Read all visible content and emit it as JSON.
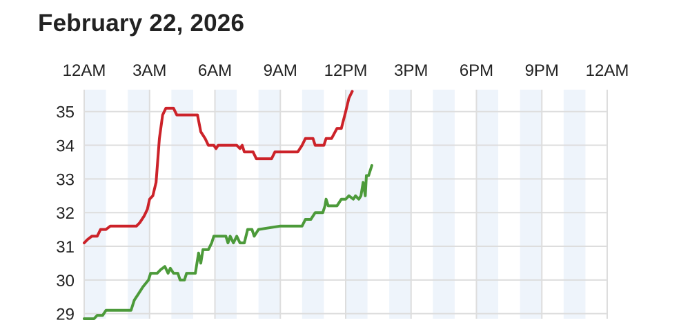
{
  "header": {
    "title": "February 22, 2026"
  },
  "chart_data": {
    "type": "line",
    "title": "February 22, 2026",
    "xlabel": "",
    "ylabel": "",
    "x_tick_labels": [
      "12AM",
      "3AM",
      "6AM",
      "9AM",
      "12PM",
      "3PM",
      "6PM",
      "9PM",
      "12AM"
    ],
    "x_axis_position": "top",
    "x_range_hours": [
      0,
      24
    ],
    "y_ticks": [
      29,
      30,
      31,
      32,
      33,
      34,
      35
    ],
    "ylim": [
      28.85,
      35.65
    ],
    "grid": true,
    "alternating_hour_bands": true,
    "band_color": "#eef4fb",
    "grid_color": "#dddddd",
    "series": [
      {
        "color": "#cc2229",
        "points": [
          [
            0.0,
            31.1
          ],
          [
            0.15,
            31.2
          ],
          [
            0.35,
            31.3
          ],
          [
            0.6,
            31.3
          ],
          [
            0.75,
            31.5
          ],
          [
            1.0,
            31.5
          ],
          [
            1.2,
            31.6
          ],
          [
            2.0,
            31.6
          ],
          [
            2.4,
            31.6
          ],
          [
            2.55,
            31.7
          ],
          [
            2.75,
            31.9
          ],
          [
            2.9,
            32.1
          ],
          [
            3.0,
            32.4
          ],
          [
            3.15,
            32.5
          ],
          [
            3.3,
            32.9
          ],
          [
            3.45,
            34.2
          ],
          [
            3.6,
            34.9
          ],
          [
            3.75,
            35.1
          ],
          [
            4.1,
            35.1
          ],
          [
            4.25,
            34.9
          ],
          [
            5.2,
            34.9
          ],
          [
            5.35,
            34.4
          ],
          [
            5.55,
            34.2
          ],
          [
            5.7,
            34.0
          ],
          [
            5.95,
            34.0
          ],
          [
            6.05,
            33.9
          ],
          [
            6.15,
            34.0
          ],
          [
            6.5,
            34.0
          ],
          [
            7.0,
            34.0
          ],
          [
            7.15,
            33.9
          ],
          [
            7.25,
            34.0
          ],
          [
            7.35,
            33.8
          ],
          [
            7.75,
            33.8
          ],
          [
            7.9,
            33.6
          ],
          [
            8.6,
            33.6
          ],
          [
            8.75,
            33.8
          ],
          [
            9.2,
            33.8
          ],
          [
            9.8,
            33.8
          ],
          [
            10.0,
            34.0
          ],
          [
            10.15,
            34.2
          ],
          [
            10.5,
            34.2
          ],
          [
            10.6,
            34.0
          ],
          [
            11.0,
            34.0
          ],
          [
            11.1,
            34.2
          ],
          [
            11.35,
            34.2
          ],
          [
            11.6,
            34.5
          ],
          [
            11.8,
            34.5
          ],
          [
            12.0,
            35.0
          ],
          [
            12.15,
            35.4
          ],
          [
            12.3,
            35.6
          ]
        ]
      },
      {
        "color": "#4c9a3a",
        "points": [
          [
            0.0,
            28.85
          ],
          [
            0.45,
            28.85
          ],
          [
            0.6,
            28.95
          ],
          [
            0.85,
            28.95
          ],
          [
            1.0,
            29.1
          ],
          [
            2.15,
            29.1
          ],
          [
            2.3,
            29.4
          ],
          [
            2.5,
            29.6
          ],
          [
            2.7,
            29.8
          ],
          [
            2.95,
            30.0
          ],
          [
            3.05,
            30.2
          ],
          [
            3.35,
            30.2
          ],
          [
            3.5,
            30.3
          ],
          [
            3.7,
            30.4
          ],
          [
            3.85,
            30.2
          ],
          [
            3.95,
            30.35
          ],
          [
            4.1,
            30.2
          ],
          [
            4.3,
            30.2
          ],
          [
            4.4,
            30.0
          ],
          [
            4.6,
            30.0
          ],
          [
            4.7,
            30.2
          ],
          [
            5.1,
            30.2
          ],
          [
            5.25,
            30.8
          ],
          [
            5.35,
            30.5
          ],
          [
            5.45,
            30.9
          ],
          [
            5.7,
            30.9
          ],
          [
            5.85,
            31.1
          ],
          [
            5.95,
            31.3
          ],
          [
            6.3,
            31.3
          ],
          [
            6.5,
            31.3
          ],
          [
            6.6,
            31.1
          ],
          [
            6.7,
            31.3
          ],
          [
            6.85,
            31.1
          ],
          [
            7.0,
            31.3
          ],
          [
            7.15,
            31.1
          ],
          [
            7.35,
            31.1
          ],
          [
            7.5,
            31.5
          ],
          [
            7.7,
            31.5
          ],
          [
            7.8,
            31.3
          ],
          [
            8.0,
            31.5
          ],
          [
            9.0,
            31.6
          ],
          [
            10.0,
            31.6
          ],
          [
            10.15,
            31.8
          ],
          [
            10.4,
            31.8
          ],
          [
            10.6,
            32.0
          ],
          [
            10.95,
            32.0
          ],
          [
            11.05,
            32.2
          ],
          [
            11.1,
            32.4
          ],
          [
            11.2,
            32.2
          ],
          [
            11.6,
            32.2
          ],
          [
            11.8,
            32.4
          ],
          [
            12.0,
            32.4
          ],
          [
            12.15,
            32.5
          ],
          [
            12.35,
            32.4
          ],
          [
            12.45,
            32.5
          ],
          [
            12.6,
            32.4
          ],
          [
            12.7,
            32.5
          ],
          [
            12.8,
            32.9
          ],
          [
            12.9,
            32.5
          ],
          [
            12.95,
            33.1
          ],
          [
            13.05,
            33.1
          ],
          [
            13.2,
            33.4
          ]
        ]
      }
    ]
  }
}
